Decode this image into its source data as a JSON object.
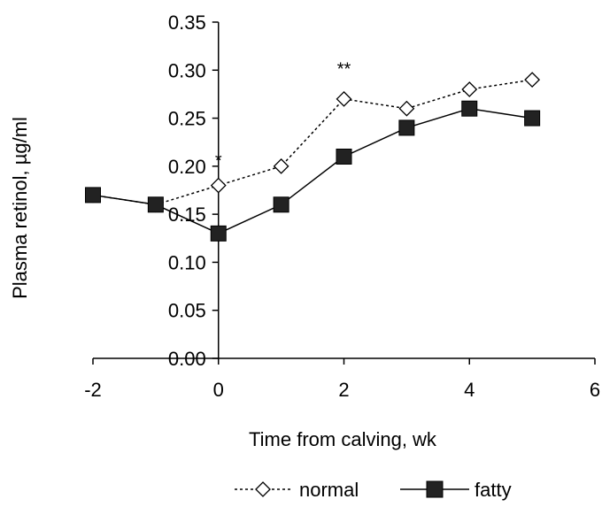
{
  "chart_data": {
    "type": "line",
    "xlabel": "Time from calving, wk",
    "ylabel": "Plasma retinol, µg/ml",
    "xlim": [
      -2,
      6
    ],
    "ylim": [
      0,
      0.35
    ],
    "x_ticks": [
      "-2",
      "0",
      "2",
      "4",
      "6"
    ],
    "y_ticks": [
      "0.00",
      "0.05",
      "0.10",
      "0.15",
      "0.20",
      "0.25",
      "0.30",
      "0.35"
    ],
    "grid": false,
    "legend_position": "bottom",
    "series": [
      {
        "name": "normal",
        "marker": "open-diamond",
        "line": "dotted",
        "x": [
          -2,
          -1,
          0,
          1,
          2,
          3,
          4,
          5
        ],
        "y": [
          0.17,
          0.16,
          0.18,
          0.2,
          0.27,
          0.26,
          0.28,
          0.29
        ]
      },
      {
        "name": "fatty",
        "marker": "filled-square",
        "line": "solid",
        "x": [
          -2,
          -1,
          0,
          1,
          2,
          3,
          4,
          5
        ],
        "y": [
          0.17,
          0.16,
          0.13,
          0.16,
          0.21,
          0.24,
          0.26,
          0.25
        ]
      }
    ],
    "annotations": [
      {
        "text": "*",
        "x": 0,
        "y": 0.2
      },
      {
        "text": "**",
        "x": 2,
        "y": 0.295
      }
    ]
  }
}
